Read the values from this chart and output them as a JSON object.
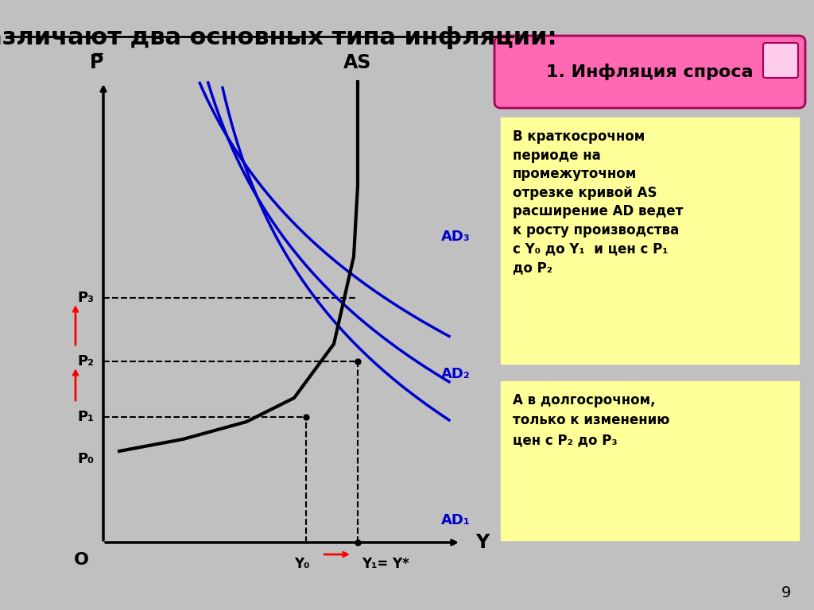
{
  "title": "Различают два основных типа инфляции:",
  "bg_color": "#C0C0C0",
  "title_color": "#000000",
  "title_fontsize": 22,
  "box1_color": "#FF69B4",
  "box1_text": "1. Инфляция спроса",
  "box2_color": "#FFFF99",
  "box2_text": "В краткосрочном\nпериоде на\nпромежуточном\nотрезке кривой AS\nрасширение AD ведет\nк росту производства\nс Y₀ до Y₁  и цен с P₁\nдо P₂",
  "box3_color": "#FFFF99",
  "box3_text": "А в долгосрочном,\nтолько к изменению\nцен с P₂ до P₃",
  "page_num": "9",
  "as_color": "#000000",
  "ad_color": "#0000CC",
  "dashed_color": "#000000",
  "label_P": "P̅",
  "label_Y": "Y",
  "label_O": "O",
  "label_AS": "AS",
  "label_AD1": "AD₁",
  "label_AD2": "AD₂",
  "label_AD3": "AD₃",
  "label_P0": "P₀",
  "label_P1": "P₁",
  "label_P2": "P₂",
  "label_P3": "P₃",
  "label_Y0": "Y₀",
  "label_Y1": "Y₁= Y*"
}
